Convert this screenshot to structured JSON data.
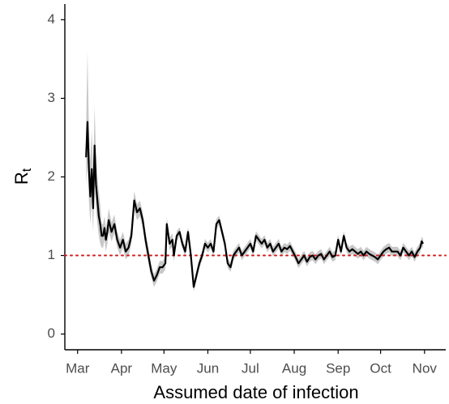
{
  "chart_data": {
    "type": "line",
    "xlabel": "Assumed date of infection",
    "ylabel": "R",
    "ylabel_subscript": "t",
    "x": [
      6,
      7,
      8,
      9,
      10,
      11,
      12,
      13,
      14,
      15,
      16,
      17,
      18,
      19,
      20,
      21,
      22,
      24,
      26,
      28,
      30,
      32,
      34,
      36,
      38,
      40,
      42,
      44,
      46,
      48,
      50,
      52,
      54,
      56,
      58,
      60,
      62,
      63,
      65,
      67,
      68,
      70,
      72,
      74,
      76,
      78,
      80,
      82,
      84,
      86,
      88,
      90,
      92,
      94,
      96,
      98,
      100,
      102,
      104,
      106,
      108,
      110,
      112,
      114,
      116,
      118,
      120,
      122,
      124,
      126,
      128,
      130,
      132,
      134,
      136,
      138,
      140,
      142,
      144,
      146,
      148,
      150,
      152,
      154,
      156,
      158,
      160,
      162,
      164,
      166,
      168,
      170,
      172,
      174,
      176,
      178,
      180,
      182,
      184,
      186,
      188,
      190,
      192,
      194,
      196,
      198,
      200,
      202,
      204,
      206,
      208,
      210,
      212,
      214,
      216,
      218,
      220,
      222,
      224,
      226,
      228,
      230,
      232,
      234,
      236,
      238,
      240,
      242,
      243,
      244
    ],
    "series": [
      {
        "color": "#000000",
        "band_color": "#c8c8c8",
        "values": [
          2.25,
          2.7,
          2.1,
          1.75,
          2.1,
          1.6,
          2.4,
          1.9,
          1.7,
          1.5,
          1.4,
          1.25,
          1.25,
          1.35,
          1.2,
          1.3,
          1.45,
          1.3,
          1.4,
          1.2,
          1.1,
          1.2,
          1.05,
          1.1,
          1.25,
          1.7,
          1.55,
          1.6,
          1.45,
          1.2,
          1.0,
          0.8,
          0.68,
          0.75,
          0.85,
          0.85,
          0.9,
          1.4,
          1.15,
          1.2,
          1.0,
          1.25,
          1.3,
          1.15,
          1.05,
          1.3,
          1.0,
          0.6,
          0.75,
          0.9,
          1.0,
          1.15,
          1.1,
          1.15,
          1.05,
          1.4,
          1.45,
          1.3,
          1.15,
          0.9,
          0.85,
          1.0,
          1.05,
          1.1,
          1.0,
          1.05,
          1.1,
          1.15,
          1.05,
          1.25,
          1.2,
          1.15,
          1.2,
          1.1,
          1.15,
          1.05,
          1.1,
          1.15,
          1.05,
          1.1,
          1.08,
          1.12,
          1.05,
          0.98,
          0.9,
          0.95,
          1.0,
          0.92,
          0.98,
          1.0,
          0.95,
          1.0,
          1.02,
          0.95,
          1.0,
          1.05,
          0.98,
          1.0,
          1.2,
          1.05,
          1.25,
          1.1,
          1.05,
          1.08,
          1.05,
          1.02,
          1.05,
          1.0,
          1.05,
          1.02,
          1.0,
          0.98,
          0.95,
          1.0,
          1.05,
          1.08,
          1.1,
          1.05,
          1.05,
          1.05,
          1.0,
          1.1,
          1.05,
          1.0,
          1.05,
          0.98,
          1.05,
          1.1,
          1.18,
          1.15
        ],
        "lower": [
          1.9,
          2.2,
          1.7,
          1.4,
          1.7,
          1.3,
          2.0,
          1.6,
          1.4,
          1.25,
          1.15,
          1.1,
          1.1,
          1.2,
          1.05,
          1.15,
          1.3,
          1.18,
          1.28,
          1.1,
          1.0,
          1.1,
          0.95,
          1.0,
          1.15,
          1.58,
          1.45,
          1.5,
          1.35,
          1.1,
          0.9,
          0.72,
          0.6,
          0.67,
          0.77,
          0.77,
          0.82,
          1.32,
          1.07,
          1.12,
          0.92,
          1.19,
          1.24,
          1.09,
          0.99,
          1.24,
          0.94,
          0.54,
          0.69,
          0.84,
          0.94,
          1.09,
          1.04,
          1.09,
          0.99,
          1.34,
          1.39,
          1.24,
          1.09,
          0.84,
          0.79,
          0.94,
          0.99,
          1.04,
          0.94,
          0.99,
          1.04,
          1.09,
          0.99,
          1.19,
          1.14,
          1.09,
          1.14,
          1.04,
          1.09,
          0.99,
          1.04,
          1.09,
          0.99,
          1.04,
          1.02,
          1.06,
          0.99,
          0.92,
          0.84,
          0.89,
          0.94,
          0.86,
          0.92,
          0.94,
          0.89,
          0.94,
          0.96,
          0.89,
          0.94,
          0.99,
          0.92,
          0.94,
          1.14,
          0.99,
          1.19,
          1.04,
          0.99,
          1.02,
          0.99,
          0.96,
          0.99,
          0.94,
          0.99,
          0.96,
          0.94,
          0.92,
          0.89,
          0.94,
          0.99,
          1.02,
          1.04,
          0.99,
          0.99,
          0.99,
          0.94,
          1.04,
          0.99,
          0.94,
          0.99,
          0.92,
          0.99,
          1.04,
          1.12,
          1.09
        ],
        "upper": [
          2.6,
          3.6,
          2.6,
          2.2,
          2.6,
          2.0,
          2.9,
          2.3,
          2.0,
          1.8,
          1.65,
          1.4,
          1.4,
          1.5,
          1.35,
          1.45,
          1.6,
          1.42,
          1.52,
          1.3,
          1.2,
          1.3,
          1.15,
          1.2,
          1.35,
          1.82,
          1.65,
          1.7,
          1.55,
          1.3,
          1.1,
          0.88,
          0.76,
          0.83,
          0.93,
          0.93,
          0.98,
          1.48,
          1.23,
          1.28,
          1.08,
          1.31,
          1.36,
          1.21,
          1.11,
          1.36,
          1.06,
          0.66,
          0.81,
          0.96,
          1.06,
          1.21,
          1.16,
          1.21,
          1.11,
          1.46,
          1.51,
          1.36,
          1.21,
          0.96,
          0.91,
          1.06,
          1.11,
          1.16,
          1.06,
          1.11,
          1.16,
          1.21,
          1.11,
          1.31,
          1.26,
          1.21,
          1.26,
          1.16,
          1.21,
          1.11,
          1.16,
          1.21,
          1.11,
          1.16,
          1.14,
          1.18,
          1.11,
          1.04,
          0.96,
          1.01,
          1.06,
          0.98,
          1.04,
          1.06,
          1.01,
          1.06,
          1.08,
          1.01,
          1.06,
          1.11,
          1.04,
          1.06,
          1.26,
          1.11,
          1.31,
          1.16,
          1.11,
          1.14,
          1.11,
          1.08,
          1.11,
          1.06,
          1.11,
          1.08,
          1.06,
          1.04,
          1.01,
          1.06,
          1.11,
          1.14,
          1.16,
          1.11,
          1.11,
          1.11,
          1.06,
          1.16,
          1.11,
          1.06,
          1.11,
          1.04,
          1.11,
          1.16,
          1.24,
          1.21
        ]
      }
    ],
    "reference_line": {
      "value": 1,
      "color": "#d7191c"
    },
    "xlim": [
      -9,
      260
    ],
    "xticks": [
      {
        "value": 0,
        "label": "Mar"
      },
      {
        "value": 31,
        "label": "Apr"
      },
      {
        "value": 61,
        "label": "May"
      },
      {
        "value": 92,
        "label": "Jun"
      },
      {
        "value": 122,
        "label": "Jul"
      },
      {
        "value": 153,
        "label": "Aug"
      },
      {
        "value": 184,
        "label": "Sep"
      },
      {
        "value": 214,
        "label": "Oct"
      },
      {
        "value": 245,
        "label": "Nov"
      }
    ],
    "ylim": [
      -0.2,
      4.2
    ],
    "yticks": [
      0,
      1,
      2,
      3,
      4
    ],
    "grid": false
  }
}
